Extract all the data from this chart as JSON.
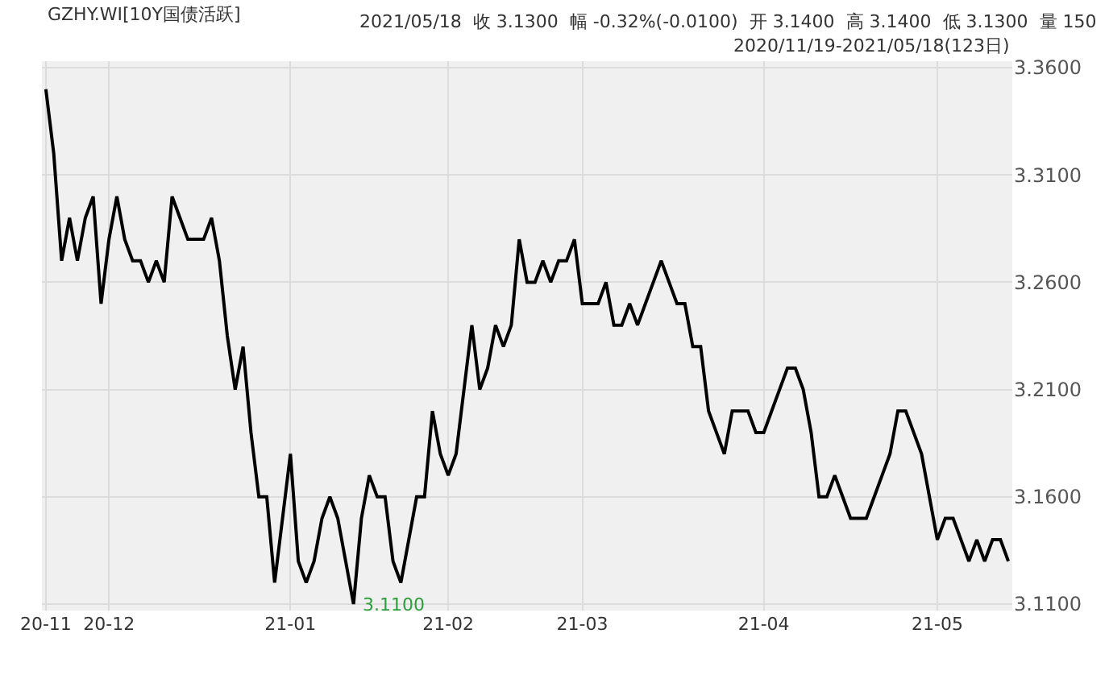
{
  "chart_data": {
    "type": "line",
    "title": "GZHY.WI[10Y国债活跃]",
    "subtitle": "2021/05/18  收 3.1300  幅 -0.32%(-0.0100)  开 3.1400  高 3.1400  低 3.1300  量 150",
    "annotations": [
      "2020/11/19-2021/05/18(123日)",
      "3.1100"
    ],
    "categories": [
      "20-11",
      null,
      null,
      null,
      null,
      null,
      null,
      null,
      "20-12",
      null,
      null,
      null,
      null,
      null,
      null,
      null,
      null,
      null,
      null,
      null,
      null,
      null,
      null,
      null,
      null,
      null,
      null,
      null,
      null,
      null,
      null,
      "21-01",
      null,
      null,
      null,
      null,
      null,
      null,
      null,
      null,
      null,
      null,
      null,
      null,
      null,
      null,
      null,
      null,
      null,
      null,
      null,
      "21-02",
      null,
      null,
      null,
      null,
      null,
      null,
      null,
      null,
      null,
      null,
      null,
      null,
      null,
      null,
      null,
      null,
      "21-03",
      null,
      null,
      null,
      null,
      null,
      null,
      null,
      null,
      null,
      null,
      null,
      null,
      null,
      null,
      null,
      null,
      null,
      null,
      null,
      null,
      null,
      null,
      "21-04",
      null,
      null,
      null,
      null,
      null,
      null,
      null,
      null,
      null,
      null,
      null,
      null,
      null,
      null,
      null,
      null,
      null,
      null,
      null,
      null,
      null,
      "21-05",
      null,
      null,
      null,
      null,
      null,
      null,
      null,
      null,
      null
    ],
    "series": [
      {
        "color": "#000000",
        "values": [
          3.35,
          3.32,
          3.27,
          3.29,
          3.27,
          3.29,
          3.3,
          3.25,
          3.28,
          3.3,
          3.28,
          3.27,
          3.27,
          3.26,
          3.27,
          3.26,
          3.3,
          3.29,
          3.28,
          3.28,
          3.28,
          3.29,
          3.27,
          3.235,
          3.21,
          3.23,
          3.19,
          3.16,
          3.16,
          3.12,
          3.15,
          3.18,
          3.13,
          3.12,
          3.13,
          3.15,
          3.16,
          3.15,
          3.13,
          3.11,
          3.15,
          3.17,
          3.16,
          3.16,
          3.13,
          3.12,
          3.14,
          3.16,
          3.16,
          3.2,
          3.18,
          3.17,
          3.18,
          3.21,
          3.24,
          3.21,
          3.22,
          3.24,
          3.23,
          3.24,
          3.28,
          3.26,
          3.26,
          3.27,
          3.26,
          3.27,
          3.27,
          3.28,
          3.25,
          3.25,
          3.25,
          3.26,
          3.24,
          3.24,
          3.25,
          3.24,
          3.25,
          3.26,
          3.27,
          3.26,
          3.25,
          3.25,
          3.23,
          3.23,
          3.2,
          3.19,
          3.18,
          3.2,
          3.2,
          3.2,
          3.19,
          3.19,
          3.2,
          3.21,
          3.22,
          3.22,
          3.21,
          3.19,
          3.16,
          3.16,
          3.17,
          3.16,
          3.15,
          3.15,
          3.15,
          3.16,
          3.17,
          3.18,
          3.2,
          3.2,
          3.19,
          3.18,
          3.16,
          3.14,
          3.15,
          3.15,
          3.14,
          3.13,
          3.14,
          3.13,
          3.14,
          3.14,
          3.13
        ]
      }
    ],
    "ylim": [
      3.107,
      3.363
    ],
    "yticks": [
      {
        "value": 3.11,
        "label": "3.1100"
      },
      {
        "value": 3.16,
        "label": "3.1600"
      },
      {
        "value": 3.21,
        "label": "3.2100"
      },
      {
        "value": 3.26,
        "label": "3.2600"
      },
      {
        "value": 3.31,
        "label": "3.3100"
      },
      {
        "value": 3.36,
        "label": "3.3600"
      }
    ],
    "grid": true,
    "marker": "none",
    "line_style": "solid"
  }
}
